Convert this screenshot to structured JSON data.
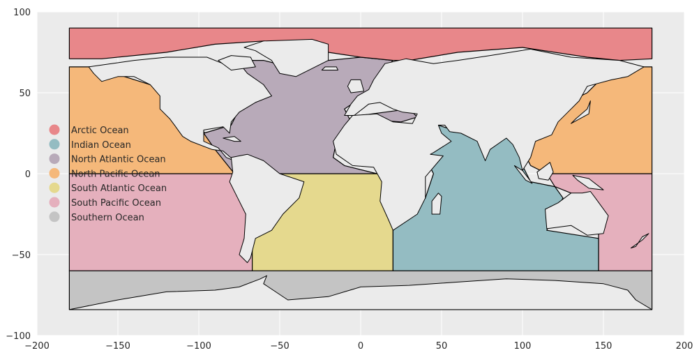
{
  "chart_data": {
    "type": "map",
    "title": "",
    "xlabel": "",
    "ylabel": "",
    "xlim": [
      -200,
      200
    ],
    "ylim": [
      -100,
      100
    ],
    "grid": true,
    "legend_placement": "center-left",
    "xticks": [
      -200,
      -150,
      -100,
      -50,
      0,
      50,
      100,
      150,
      200
    ],
    "yticks": [
      -100,
      -50,
      0,
      50,
      100
    ],
    "xtick_labels": [
      "−200",
      "−150",
      "−100",
      "−50",
      "0",
      "50",
      "100",
      "150",
      "200"
    ],
    "ytick_labels": [
      "−100",
      "−50",
      "0",
      "50",
      "100"
    ],
    "colors": {
      "background": "#ebebeb",
      "grid": "#ffffff",
      "land": "#ebebeb",
      "border": "#000000"
    },
    "regions": [
      {
        "name": "Arctic Ocean",
        "color": "#e8878a",
        "bbox_lonlat": [
          [
            -180,
            90
          ],
          [
            180,
            90
          ],
          [
            180,
            71
          ],
          [
            -180,
            71
          ]
        ]
      },
      {
        "name": "Indian Ocean",
        "color": "#94bcc2",
        "bbox_lonlat": [
          [
            20,
            25
          ],
          [
            147,
            25
          ],
          [
            147,
            -60
          ],
          [
            20,
            -60
          ]
        ]
      },
      {
        "name": "North Atlantic Ocean",
        "color": "#b8aab9",
        "bbox_lonlat": [
          [
            -100,
            80
          ],
          [
            30,
            80
          ],
          [
            30,
            0
          ],
          [
            -100,
            0
          ]
        ]
      },
      {
        "name": "North Pacific Ocean",
        "color": "#f5b87a",
        "bbox_lonlat": [
          [
            -180,
            66
          ],
          [
            180,
            66
          ],
          [
            180,
            0
          ],
          [
            -180,
            0
          ]
        ]
      },
      {
        "name": "South Atlantic Ocean",
        "color": "#e5d98e",
        "bbox_lonlat": [
          [
            -67,
            0
          ],
          [
            20,
            0
          ],
          [
            20,
            -60
          ],
          [
            -67,
            -60
          ]
        ]
      },
      {
        "name": "South Pacific Ocean",
        "color": "#e5b0bd",
        "bbox_lonlat": [
          [
            -180,
            0
          ],
          [
            180,
            0
          ],
          [
            180,
            -60
          ],
          [
            -180,
            -60
          ]
        ]
      },
      {
        "name": "Southern Ocean",
        "color": "#c4c4c4",
        "bbox_lonlat": [
          [
            -180,
            -60
          ],
          [
            180,
            -60
          ],
          [
            180,
            -85
          ],
          [
            -180,
            -85
          ]
        ]
      }
    ],
    "legend": [
      {
        "label": "Arctic Ocean",
        "color": "#e8878a"
      },
      {
        "label": "Indian Ocean",
        "color": "#94bcc2"
      },
      {
        "label": "North Atlantic Ocean",
        "color": "#b8aab9"
      },
      {
        "label": "North Pacific Ocean",
        "color": "#f5b87a"
      },
      {
        "label": "South Atlantic Ocean",
        "color": "#e5d98e"
      },
      {
        "label": "South Pacific Ocean",
        "color": "#e5b0bd"
      },
      {
        "label": "Southern Ocean",
        "color": "#c4c4c4"
      }
    ]
  }
}
